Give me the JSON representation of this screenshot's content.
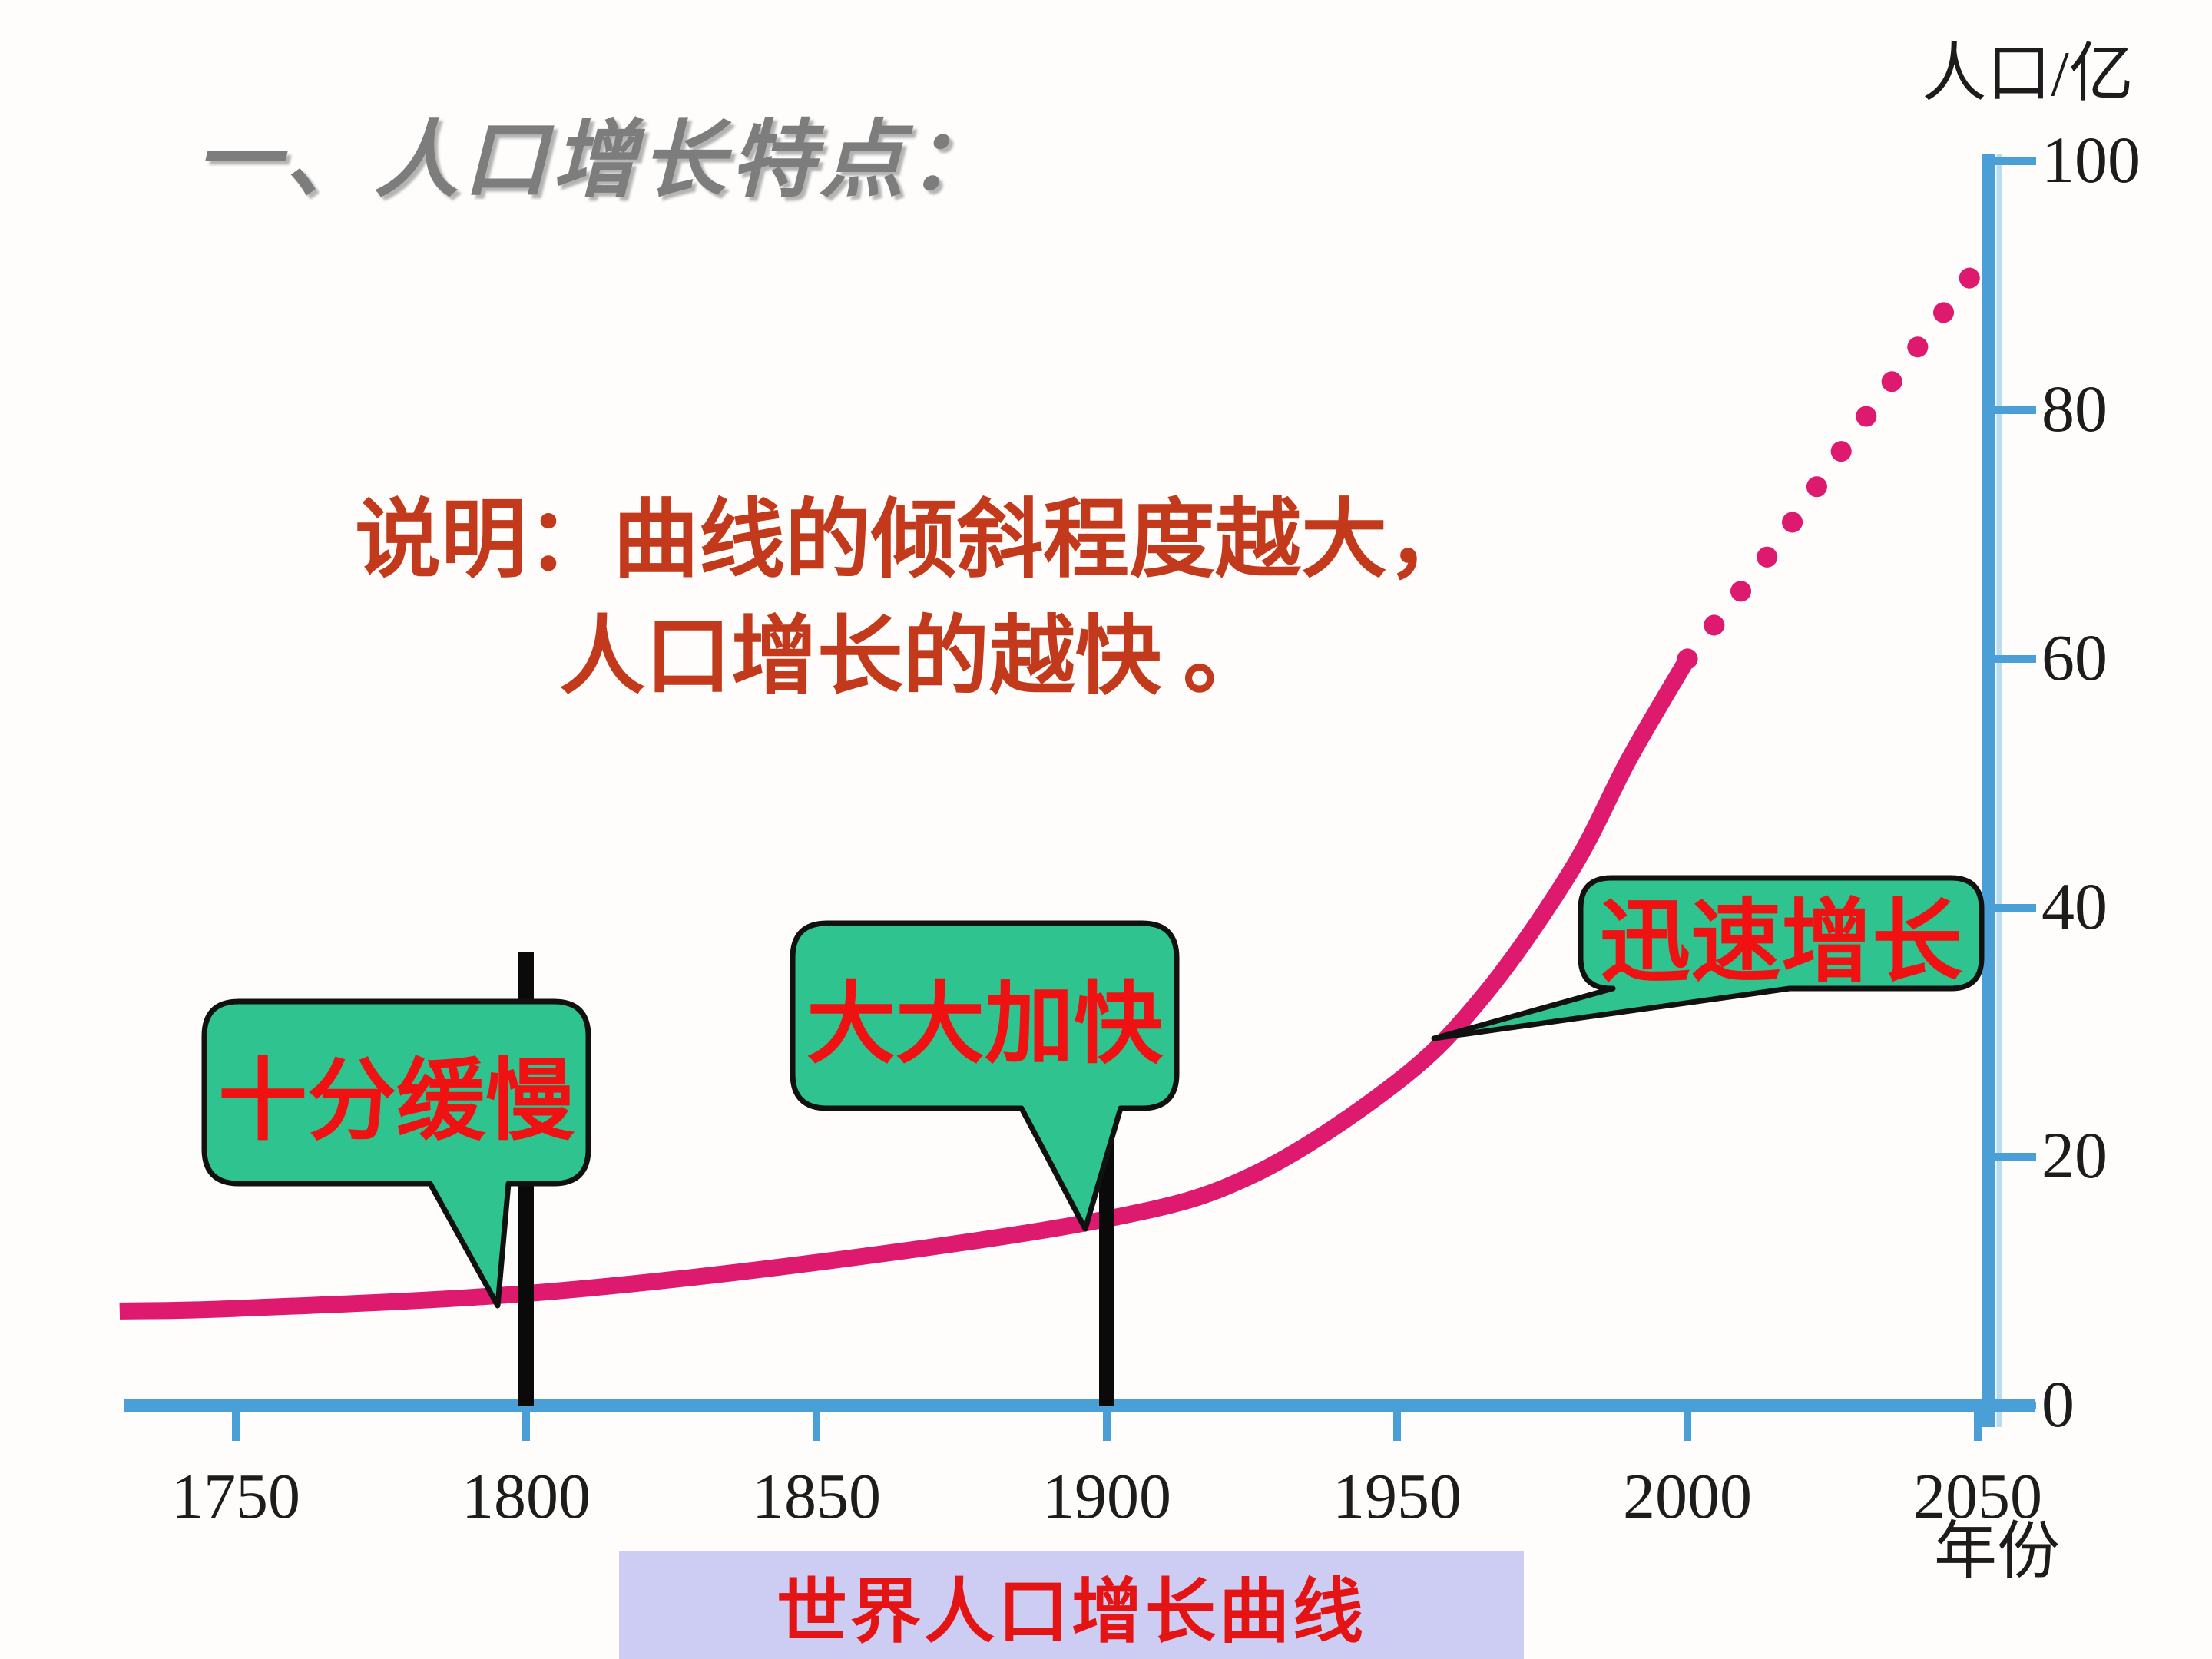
{
  "slide": {
    "title": "一、人口增长特点：",
    "note_line1": "说明：曲线的倾斜程度越大，",
    "note_line2": "人口增长的越快 。",
    "caption": "世界人口增长曲线"
  },
  "chart_data": {
    "type": "line",
    "title": "世界人口增长曲线",
    "xlabel": "年份",
    "ylabel": "人口/亿",
    "x_ticks": [
      "1750",
      "1800",
      "1850",
      "1900",
      "1950",
      "2000",
      "2050"
    ],
    "y_ticks": [
      "0",
      "20",
      "40",
      "60",
      "80",
      "100"
    ],
    "xlim": [
      1725,
      2055
    ],
    "ylim": [
      0,
      100
    ],
    "grid": false,
    "legend": "none",
    "series": [
      {
        "name": "world-population-observed",
        "style": "solid",
        "points": [
          [
            1730,
            7.6
          ],
          [
            1750,
            7.8
          ],
          [
            1800,
            9
          ],
          [
            1850,
            11.5
          ],
          [
            1900,
            15
          ],
          [
            1925,
            18.5
          ],
          [
            1950,
            26
          ],
          [
            1965,
            33
          ],
          [
            1980,
            43
          ],
          [
            1990,
            52
          ],
          [
            2000,
            60
          ]
        ]
      },
      {
        "name": "world-population-projected",
        "style": "dotted",
        "points": [
          [
            2000,
            60
          ],
          [
            2015,
            69
          ],
          [
            2030,
            79
          ],
          [
            2050,
            91.5
          ]
        ]
      }
    ],
    "marker_years": [
      "1800",
      "1900"
    ],
    "annotations": [
      {
        "label": "十分缓慢",
        "anchor_year": 1795,
        "anchor_value": 9
      },
      {
        "label": "大大加快",
        "anchor_year": 1896,
        "anchor_value": 14.5
      },
      {
        "label": "迅速增长",
        "anchor_year": 1956,
        "anchor_value": 29
      }
    ]
  },
  "colors": {
    "curve": "#dd1a6e",
    "axis": "#4a9fd6",
    "axis_halo": "#b8dcf0",
    "bubble_fill": "#2ec38f",
    "bubble_border": "#111111",
    "bubble_text": "#f01212",
    "marker_line": "#0a0a0a",
    "note_text": "#c23a1b",
    "title_text": "#7d7d7d",
    "caption_bg": "#cdccf3",
    "caption_text": "#e41414",
    "tick_text": "#1c1c1c"
  }
}
